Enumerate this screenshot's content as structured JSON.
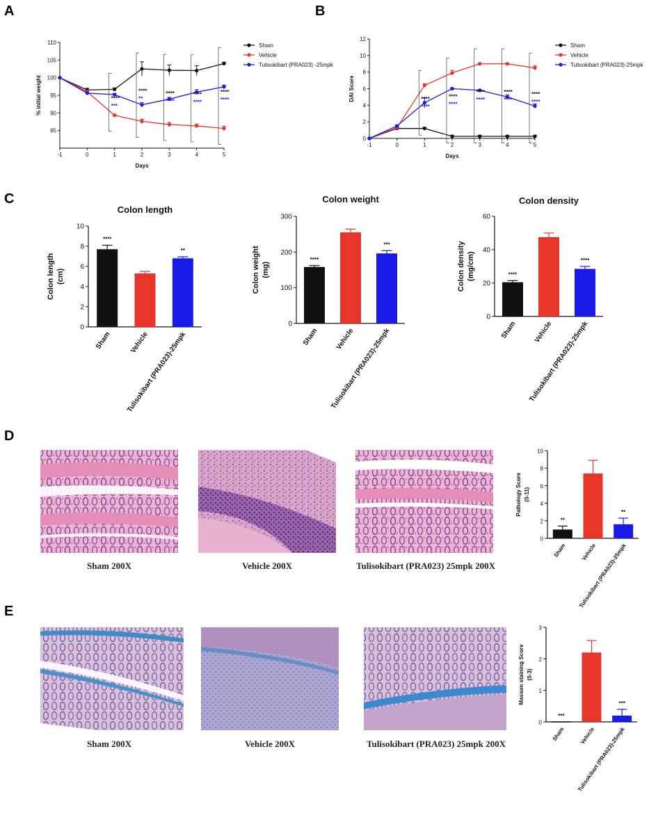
{
  "panel_labels": [
    "A",
    "B",
    "C",
    "D",
    "E"
  ],
  "colors": {
    "sham": "#111111",
    "vehicle": "#e8352a",
    "treat": "#1a1ae6"
  },
  "legend": {
    "A": [
      "Sham",
      "Vehicle",
      "Tulisokibart (PRA023) -25mpk"
    ],
    "B": [
      "Sham",
      "Vehicle",
      "Tulisokibart (PRA023)-25mpk"
    ]
  },
  "chart_data": [
    {
      "id": "A",
      "type": "line",
      "x": [
        -1,
        0,
        1,
        2,
        3,
        4,
        5
      ],
      "xlabel": "Days",
      "ylabel": "% initial weight",
      "xlim": [
        -1,
        5
      ],
      "ylim": [
        80,
        110
      ],
      "yticks": [
        85,
        90,
        95,
        100,
        105,
        110
      ],
      "series": [
        {
          "name": "Sham",
          "values": [
            100,
            96.5,
            96.7,
            102.5,
            102.1,
            102.0,
            104.0
          ],
          "err": [
            0,
            0.5,
            0.4,
            2.0,
            1.5,
            1.4,
            0.4
          ]
        },
        {
          "name": "Vehicle",
          "values": [
            100,
            96.0,
            89.3,
            87.6,
            86.7,
            86.3,
            85.6
          ],
          "err": [
            0,
            0.4,
            0.3,
            0.6,
            0.6,
            0.5,
            0.6
          ]
        },
        {
          "name": "Tulisokibart (PRA023) -25mpk",
          "values": [
            100,
            95.6,
            95.2,
            92.3,
            93.9,
            95.9,
            97.4
          ],
          "err": [
            0,
            0.4,
            0.3,
            0.6,
            0.5,
            0.7,
            0.5
          ]
        }
      ],
      "annotations": [
        {
          "x": 1,
          "black": "****",
          "blue": "***"
        },
        {
          "x": 2,
          "black": "****",
          "blue": "**"
        },
        {
          "x": 3,
          "black": "****",
          "blue": "****"
        },
        {
          "x": 4,
          "black": "****",
          "blue": "****"
        },
        {
          "x": 5,
          "black": "****",
          "blue": "****"
        }
      ]
    },
    {
      "id": "B",
      "type": "line",
      "x": [
        -1,
        0,
        1,
        2,
        3,
        4,
        5
      ],
      "xlabel": "Days",
      "ylabel": "DAI Score",
      "xlim": [
        -1,
        5
      ],
      "ylim": [
        0,
        12
      ],
      "yticks": [
        0,
        2,
        4,
        6,
        8,
        10,
        12
      ],
      "series": [
        {
          "name": "Sham",
          "values": [
            0,
            1.2,
            1.2,
            0.25,
            0.25,
            0.25,
            0.25
          ],
          "err": [
            0,
            0.1,
            0.15,
            0.1,
            0.1,
            0.1,
            0.1
          ]
        },
        {
          "name": "Vehicle",
          "values": [
            0,
            1.3,
            6.4,
            7.9,
            9.0,
            9.0,
            8.5
          ],
          "err": [
            0,
            0.1,
            0.2,
            0.3,
            0.1,
            0.1,
            0.25
          ]
        },
        {
          "name": "Tulisokibart (PRA023)-25mpk",
          "values": [
            0,
            1.5,
            4.3,
            6.0,
            5.8,
            5.0,
            3.9
          ],
          "err": [
            0,
            0.1,
            0.6,
            0.1,
            0.1,
            0.25,
            0.25
          ]
        }
      ],
      "annotations": [
        {
          "x": 1,
          "black": "****",
          "blue": "****"
        },
        {
          "x": 2,
          "black": "****",
          "blue": "****"
        },
        {
          "x": 3,
          "black": "****",
          "blue": "****"
        },
        {
          "x": 4,
          "black": "****",
          "blue": "****"
        },
        {
          "x": 5,
          "black": "****",
          "blue": "****"
        }
      ]
    },
    {
      "id": "C1",
      "type": "bar",
      "title": "Colon length",
      "categories": [
        "Sham",
        "Vehicle",
        "Tulisokibart (PRA023)-25mpk"
      ],
      "values": [
        7.7,
        5.3,
        6.8
      ],
      "err": [
        0.4,
        0.2,
        0.15
      ],
      "stars": [
        "****",
        "",
        "**"
      ],
      "ylabel": "Colon length\n(cm)",
      "ylim": [
        0,
        10
      ],
      "yticks": [
        0,
        2,
        4,
        6,
        8,
        10
      ]
    },
    {
      "id": "C2",
      "type": "bar",
      "title": "Colon weight",
      "categories": [
        "Sham",
        "Vehicle",
        "Tulisokibart (PRA023)-25mpk"
      ],
      "values": [
        158,
        255,
        196
      ],
      "err": [
        4,
        9,
        8
      ],
      "stars": [
        "****",
        "",
        "***"
      ],
      "ylabel": "Colon weight\n(mg)",
      "ylim": [
        0,
        300
      ],
      "yticks": [
        0,
        100,
        200,
        300
      ]
    },
    {
      "id": "C3",
      "type": "bar",
      "title": "Colon density",
      "categories": [
        "Sham",
        "Vehicle",
        "Tulisokibart (PRA023)-25mpk"
      ],
      "values": [
        20.5,
        47.5,
        28.5
      ],
      "err": [
        1.0,
        2.5,
        1.5
      ],
      "stars": [
        "****",
        "",
        "****"
      ],
      "ylabel": "Colon density\n(mg/cm)",
      "ylim": [
        0,
        60
      ],
      "yticks": [
        0,
        20,
        40,
        60
      ]
    },
    {
      "id": "D",
      "type": "bar",
      "categories": [
        "Sham",
        "Vehicle",
        "Tulisokibart (PRA023)-25mpk"
      ],
      "values": [
        1.0,
        7.4,
        1.6
      ],
      "err": [
        0.4,
        1.5,
        0.7
      ],
      "stars": [
        "**",
        "",
        "**"
      ],
      "ylabel": "Pathology Score\n(0-11)",
      "ylim": [
        0,
        10
      ],
      "yticks": [
        0,
        2,
        4,
        6,
        8,
        10
      ]
    },
    {
      "id": "E",
      "type": "bar",
      "categories": [
        "Sham",
        "Vehicle",
        "Tulisokibart (PRA023)-25mpk"
      ],
      "values": [
        0,
        2.2,
        0.2
      ],
      "err": [
        0,
        0.38,
        0.2
      ],
      "stars": [
        "***",
        "",
        "***"
      ],
      "ylabel": "Masson staining Score\n(0-3)",
      "ylim": [
        0,
        3
      ],
      "yticks": [
        0,
        1,
        2,
        3
      ]
    }
  ],
  "captions": {
    "D": [
      "Sham 200X",
      "Vehicle 200X",
      "Tulisokibart (PRA023) 25mpk 200X"
    ],
    "E": [
      "Sham 200X",
      "Vehicle 200X",
      "Tulisokibart (PRA023) 25mpk 200X"
    ]
  }
}
